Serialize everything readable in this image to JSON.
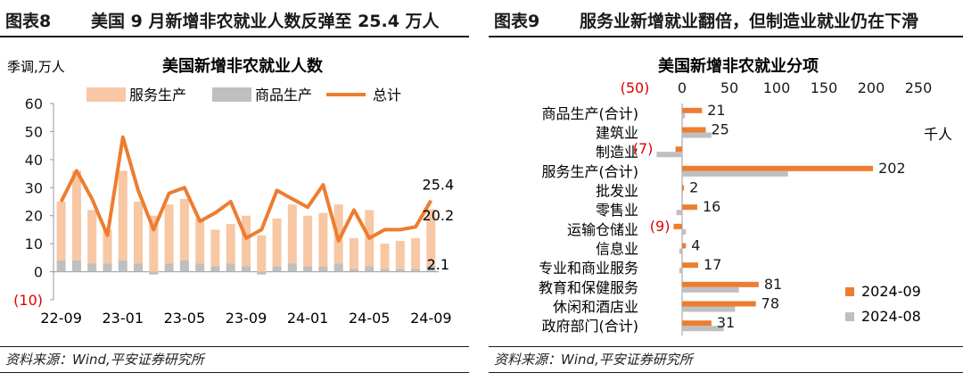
{
  "left": {
    "fig_label": "图表8",
    "header_title": "美国 9 月新增非农就业人数反弹至 25.4 万人",
    "source": "资料来源：Wind,平安证券研究所"
  },
  "right": {
    "fig_label": "图表9",
    "header_title": "服务业新增就业翻倍，但制造业就业仍在下滑",
    "source": "资料来源：Wind,平安证券研究所"
  },
  "colors": {
    "orange": "#ed7d31",
    "peach": "#f8c7a4",
    "gray": "#bfbfbf",
    "red": "#e00000"
  },
  "chart_data": [
    {
      "type": "bar",
      "title": "美国新增非农就业人数",
      "ylabel": "季调,万人",
      "ylim": [
        -10,
        60
      ],
      "yticks": [
        -10,
        0,
        10,
        20,
        30,
        40,
        50,
        60
      ],
      "ytick_labels": [
        "(10)",
        "0",
        "10",
        "20",
        "30",
        "40",
        "50",
        "60"
      ],
      "xtick_labels": [
        "22-09",
        "23-01",
        "23-05",
        "23-09",
        "24-01",
        "24-05",
        "24-09"
      ],
      "xtick_index": [
        0,
        4,
        8,
        12,
        16,
        20,
        24
      ],
      "categories": [
        "22-09",
        "22-10",
        "22-11",
        "22-12",
        "23-01",
        "23-02",
        "23-03",
        "23-04",
        "23-05",
        "23-06",
        "23-07",
        "23-08",
        "23-09",
        "23-10",
        "23-11",
        "23-12",
        "24-01",
        "24-02",
        "24-03",
        "24-04",
        "24-05",
        "24-06",
        "24-07",
        "24-08",
        "24-09"
      ],
      "series": [
        {
          "name": "服务生产",
          "kind": "bar",
          "values": [
            21,
            32,
            19,
            12,
            32,
            22,
            20,
            21,
            22,
            16,
            13,
            14,
            18,
            13,
            17,
            21,
            18,
            19,
            21,
            11,
            20,
            9,
            10,
            11,
            20.2
          ]
        },
        {
          "name": "商品生产",
          "kind": "bar",
          "values": [
            4,
            4,
            3,
            3,
            4,
            3,
            -1,
            3,
            4,
            3,
            2,
            3,
            2,
            -1,
            2,
            3,
            2,
            2,
            3,
            1,
            2,
            1,
            1,
            1,
            2.1
          ]
        },
        {
          "name": "总计",
          "kind": "line",
          "values": [
            25,
            36,
            26,
            13,
            48,
            29,
            15,
            28,
            30,
            18,
            21,
            25,
            12,
            15,
            29,
            26,
            23,
            31,
            11,
            22,
            12,
            15,
            15,
            16,
            25.4
          ]
        }
      ],
      "annotations": [
        {
          "label": "25.4",
          "value": 25.4
        },
        {
          "label": "20.2",
          "value": 20.2
        },
        {
          "label": "2.1",
          "value": 2.1
        }
      ]
    },
    {
      "type": "bar",
      "orientation": "horizontal",
      "title": "美国新增非农就业分项",
      "unit": "千人",
      "xlim": [
        -50,
        250
      ],
      "xticks": [
        -50,
        0,
        50,
        100,
        150,
        200,
        250
      ],
      "xtick_labels": [
        "(50)",
        "0",
        "50",
        "100",
        "150",
        "200",
        "250"
      ],
      "categories": [
        "商品生产(合计)",
        "建筑业",
        "制造业",
        "服务生产(合计)",
        "批发业",
        "零售业",
        "运输仓储业",
        "信息业",
        "专业和商业服务",
        "教育和保健服务",
        "休闲和酒店业",
        "政府部门(合计)"
      ],
      "series": [
        {
          "name": "2024-09",
          "values": [
            21,
            25,
            -7,
            202,
            2,
            16,
            -9,
            4,
            17,
            81,
            78,
            31
          ]
        },
        {
          "name": "2024-08",
          "values": [
            3,
            31,
            -27,
            112,
            1,
            -6,
            4,
            -3,
            -3,
            60,
            56,
            44
          ]
        }
      ],
      "value_labels": [
        "21",
        "25",
        "(7)",
        "202",
        "2",
        "16",
        "(9)",
        "4",
        "17",
        "81",
        "78",
        "31"
      ]
    }
  ]
}
